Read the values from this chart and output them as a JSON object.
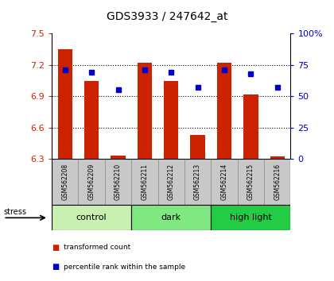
{
  "title": "GDS3933 / 247642_at",
  "samples": [
    "GSM562208",
    "GSM562209",
    "GSM562210",
    "GSM562211",
    "GSM562212",
    "GSM562213",
    "GSM562214",
    "GSM562215",
    "GSM562216"
  ],
  "red_values": [
    7.35,
    7.05,
    6.33,
    7.22,
    7.05,
    6.53,
    7.22,
    6.92,
    6.32
  ],
  "blue_values": [
    71,
    69,
    55,
    71,
    69,
    57,
    71,
    68,
    57
  ],
  "ylim_left": [
    6.3,
    7.5
  ],
  "ylim_right": [
    0,
    100
  ],
  "yticks_left": [
    6.3,
    6.6,
    6.9,
    7.2,
    7.5
  ],
  "yticks_right": [
    0,
    25,
    50,
    75,
    100
  ],
  "ytick_labels_left": [
    "6.3",
    "6.6",
    "6.9",
    "7.2",
    "7.5"
  ],
  "ytick_labels_right": [
    "0",
    "25",
    "50",
    "75",
    "100%"
  ],
  "grid_yticks": [
    6.6,
    6.9,
    7.2
  ],
  "groups": [
    {
      "label": "control",
      "indices": [
        0,
        1,
        2
      ],
      "color": "#c8f0b0"
    },
    {
      "label": "dark",
      "indices": [
        3,
        4,
        5
      ],
      "color": "#80e880"
    },
    {
      "label": "high light",
      "indices": [
        6,
        7,
        8
      ],
      "color": "#22cc44"
    }
  ],
  "stress_label": "stress",
  "bar_color": "#cc2200",
  "dot_color": "#0000cc",
  "bar_width": 0.55,
  "background_color": "#ffffff",
  "label_area_bg": "#c8c8c8",
  "cell_border": "#888888"
}
